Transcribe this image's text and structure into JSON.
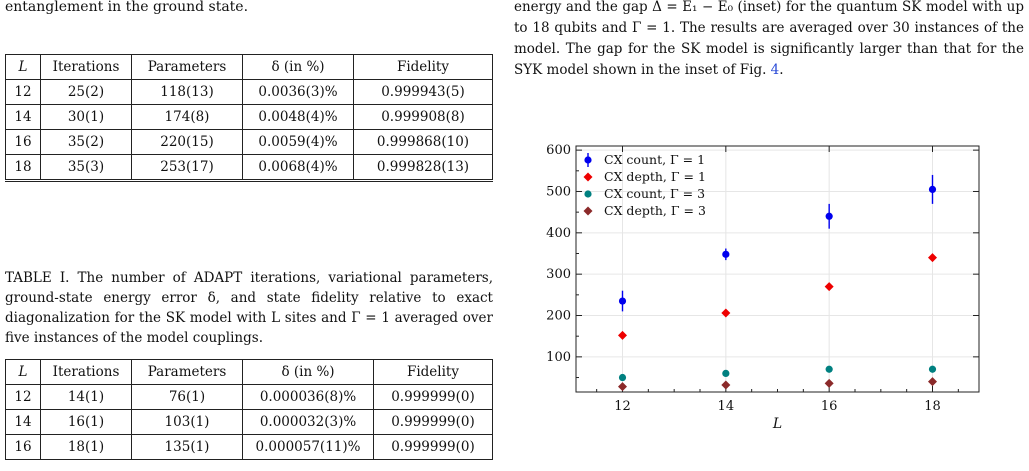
{
  "left": {
    "top_fragment": "entanglement in the ground state.",
    "table1": {
      "headers": [
        "L",
        "Iterations",
        "Parameters",
        "δ (in %)",
        "Fidelity"
      ],
      "rows": [
        [
          "12",
          "25(2)",
          "118(13)",
          "0.0036(3)%",
          "0.999943(5)"
        ],
        [
          "14",
          "30(1)",
          "174(8)",
          "0.0048(4)%",
          "0.999908(8)"
        ],
        [
          "16",
          "35(2)",
          "220(15)",
          "0.0059(4)%",
          "0.999868(10)"
        ],
        [
          "18",
          "35(3)",
          "253(17)",
          "0.0068(4)%",
          "0.999828(13)"
        ]
      ]
    },
    "caption1": "TABLE I. The number of ADAPT iterations, variational parameters, ground-state energy error δ, and state fidelity relative to exact diagonalization for the SK model with L sites and Γ = 1 averaged over five instances of the model couplings.",
    "table2": {
      "headers": [
        "L",
        "Iterations",
        "Parameters",
        "δ (in %)",
        "Fidelity"
      ],
      "rows": [
        [
          "12",
          "14(1)",
          "76(1)",
          "0.000036(8)%",
          "0.999999(0)"
        ],
        [
          "14",
          "16(1)",
          "103(1)",
          "0.000032(3)%",
          "0.999999(0)"
        ],
        [
          "16",
          "18(1)",
          "135(1)",
          "0.000057(11)%",
          "0.999999(0)"
        ]
      ]
    }
  },
  "right": {
    "text_before_link": "energy and the gap Δ = E₁ − E₀ (inset) for the quantum SK model with up to 18 qubits and Γ = 1. The results are averaged over 30 instances of the model. The gap for the SK model is significantly larger than that for the SYK model shown in the inset of Fig. ",
    "link": "4",
    "text_after_link": "."
  },
  "chart_data": {
    "type": "scatter",
    "xlabel": "L",
    "ylabel": "",
    "x_ticks": [
      12,
      14,
      16,
      18
    ],
    "y_ticks": [
      100,
      200,
      300,
      400,
      500,
      600
    ],
    "xlim": [
      11.1,
      18.9
    ],
    "ylim": [
      15,
      610
    ],
    "grid": true,
    "legend_position": "top-left",
    "series": [
      {
        "name": "CX count, Γ = 1",
        "color": "#0000ee",
        "marker": "circle",
        "x": [
          12,
          14,
          16,
          18
        ],
        "y": [
          235,
          348,
          440,
          505
        ],
        "err": [
          25,
          14,
          30,
          35
        ]
      },
      {
        "name": "CX depth, Γ = 1",
        "color": "#ee0000",
        "marker": "diamond",
        "x": [
          12,
          14,
          16,
          18
        ],
        "y": [
          152,
          206,
          270,
          340
        ],
        "err": [
          0,
          0,
          0,
          0
        ]
      },
      {
        "name": "CX count, Γ = 3",
        "color": "#008080",
        "marker": "circle",
        "x": [
          12,
          14,
          16,
          18
        ],
        "y": [
          50,
          60,
          70,
          70
        ],
        "err": [
          0,
          0,
          0,
          0
        ]
      },
      {
        "name": "CX depth, Γ = 3",
        "color": "#8b2a2a",
        "marker": "diamond",
        "x": [
          12,
          14,
          16,
          18
        ],
        "y": [
          28,
          32,
          36,
          40
        ],
        "err": [
          0,
          0,
          0,
          0
        ]
      }
    ]
  }
}
